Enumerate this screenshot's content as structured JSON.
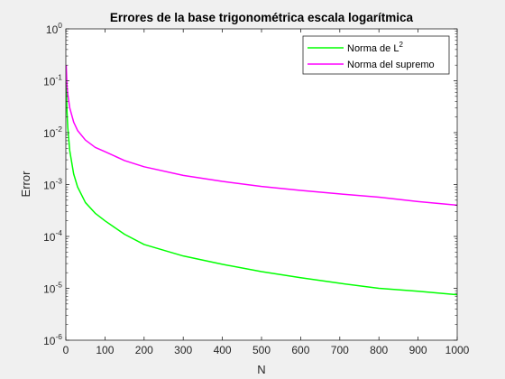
{
  "chart_data": {
    "type": "line",
    "title": "Errores de la base trigonométrica escala logarítmica",
    "xlabel": "N",
    "ylabel": "Error",
    "xlim": [
      0,
      1000
    ],
    "ylim": [
      1e-06,
      1
    ],
    "yscale": "log",
    "grid": false,
    "legend_position": "top-right",
    "x_ticks": [
      0,
      100,
      200,
      300,
      400,
      500,
      600,
      700,
      800,
      900,
      1000
    ],
    "y_ticks": [
      {
        "value": 1e-06,
        "base": "10",
        "exp": "-6"
      },
      {
        "value": 1e-05,
        "base": "10",
        "exp": "-5"
      },
      {
        "value": 0.0001,
        "base": "10",
        "exp": "-4"
      },
      {
        "value": 0.001,
        "base": "10",
        "exp": "-3"
      },
      {
        "value": 0.01,
        "base": "10",
        "exp": "-2"
      },
      {
        "value": 0.1,
        "base": "10",
        "exp": "-1"
      },
      {
        "value": 1,
        "base": "10",
        "exp": "0"
      }
    ],
    "series": [
      {
        "name": "Norma de L",
        "name_sup": "2",
        "color": "#00ff00",
        "x": [
          1,
          3,
          5,
          10,
          20,
          30,
          50,
          75,
          100,
          150,
          200,
          300,
          400,
          500,
          600,
          700,
          800,
          900,
          1000
        ],
        "y": [
          0.095,
          0.025,
          0.0125,
          0.0045,
          0.0016,
          0.0009,
          0.00045,
          0.00028,
          0.0002,
          0.00011,
          7e-05,
          4.2e-05,
          2.9e-05,
          2.1e-05,
          1.6e-05,
          1.25e-05,
          1e-05,
          8.8e-06,
          7.5e-06
        ]
      },
      {
        "name": "Norma del supremo",
        "name_sup": "",
        "color": "#ff00ff",
        "x": [
          1,
          3,
          5,
          10,
          20,
          30,
          50,
          75,
          100,
          150,
          200,
          300,
          400,
          500,
          600,
          700,
          800,
          900,
          1000
        ],
        "y": [
          0.2,
          0.08,
          0.055,
          0.03,
          0.016,
          0.011,
          0.0072,
          0.0052,
          0.0043,
          0.0029,
          0.0022,
          0.0015,
          0.00115,
          0.00092,
          0.00077,
          0.00066,
          0.00057,
          0.00047,
          0.0004
        ]
      }
    ]
  }
}
